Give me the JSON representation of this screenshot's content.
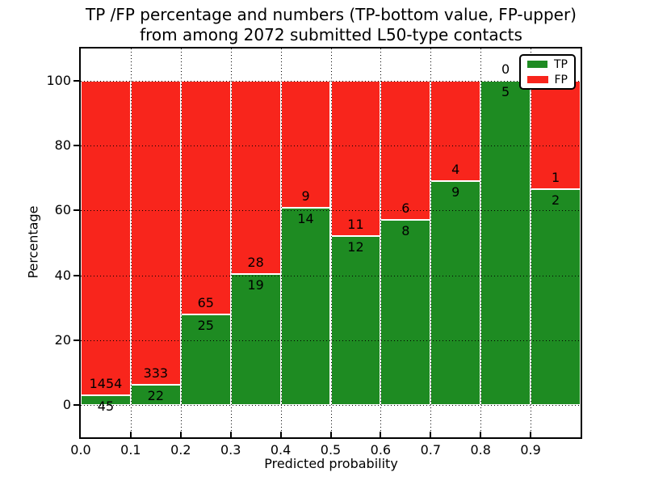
{
  "chart_data": {
    "type": "bar",
    "stacked": true,
    "title_line1": "TP /FP percentage and numbers (TP-bottom value, FP-upper)",
    "title_line2": "from among 2072 submitted L50-type contacts",
    "xlabel": "Predicted probability",
    "ylabel": "Percentage",
    "total_submitted_contacts": 2072,
    "bin_width": 0.1,
    "xlim": [
      0.0,
      1.0
    ],
    "ylim": [
      -10,
      110
    ],
    "grid": "dotted",
    "x_tick_labels": [
      "0.0",
      "0.1",
      "0.2",
      "0.3",
      "0.4",
      "0.5",
      "0.6",
      "0.7",
      "0.8",
      "0.9"
    ],
    "y_ticks": [
      0,
      20,
      40,
      60,
      80,
      100
    ],
    "y_tick_labels": [
      "0",
      "20",
      "40",
      "60",
      "80",
      "100"
    ],
    "bins": [
      {
        "x_start": 0.0,
        "tp": 45,
        "fp": 1454,
        "tp_pct": 3.0
      },
      {
        "x_start": 0.1,
        "tp": 22,
        "fp": 333,
        "tp_pct": 6.2
      },
      {
        "x_start": 0.2,
        "tp": 25,
        "fp": 65,
        "tp_pct": 27.8
      },
      {
        "x_start": 0.3,
        "tp": 19,
        "fp": 28,
        "tp_pct": 40.4
      },
      {
        "x_start": 0.4,
        "tp": 14,
        "fp": 9,
        "tp_pct": 60.9
      },
      {
        "x_start": 0.5,
        "tp": 12,
        "fp": 11,
        "tp_pct": 52.2
      },
      {
        "x_start": 0.6,
        "tp": 8,
        "fp": 6,
        "tp_pct": 57.1
      },
      {
        "x_start": 0.7,
        "tp": 9,
        "fp": 4,
        "tp_pct": 69.2
      },
      {
        "x_start": 0.8,
        "tp": 5,
        "fp": 0,
        "tp_pct": 100.0
      },
      {
        "x_start": 0.9,
        "tp": 2,
        "fp": 1,
        "tp_pct": 66.7
      }
    ],
    "legend": {
      "position": "upper right",
      "entries": [
        {
          "label": "TP",
          "color": "#1e8b22"
        },
        {
          "label": "FP",
          "color": "#f8251c"
        }
      ]
    },
    "colors": {
      "tp": "#1e8b22",
      "fp": "#f8251c",
      "bar_edge": "#ffffff",
      "grid": "#000000",
      "background": "#ffffff",
      "text": "#000000"
    }
  }
}
